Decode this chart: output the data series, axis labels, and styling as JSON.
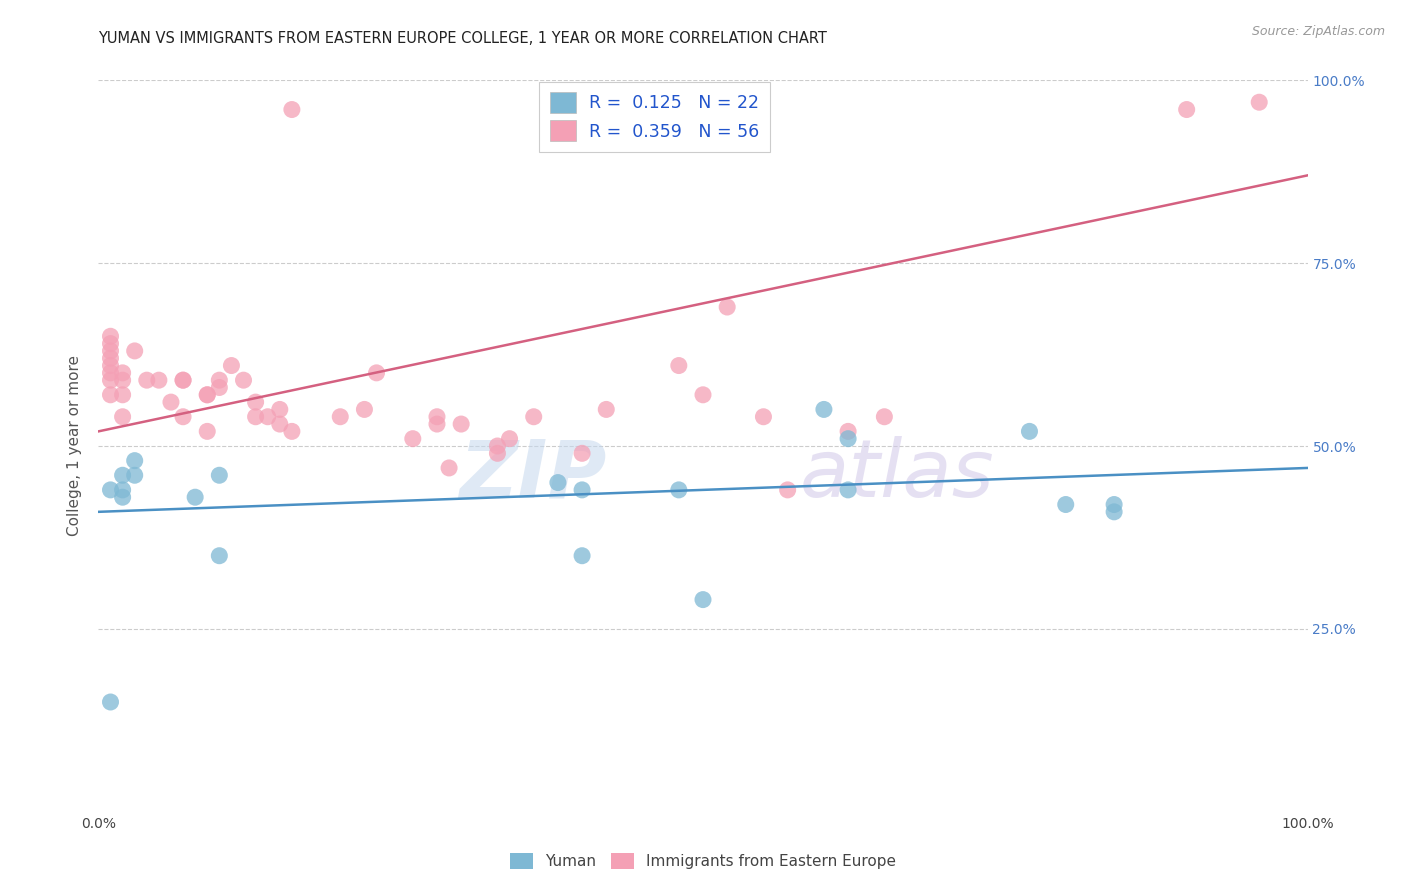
{
  "title": "YUMAN VS IMMIGRANTS FROM EASTERN EUROPE COLLEGE, 1 YEAR OR MORE CORRELATION CHART",
  "source": "Source: ZipAtlas.com",
  "ylabel": "College, 1 year or more",
  "legend_series1": "Yuman",
  "legend_series2": "Immigrants from Eastern Europe",
  "watermark_zip": "ZIP",
  "watermark_atlas": "atlas",
  "blue_color": "#7eb8d4",
  "pink_color": "#f4a0b5",
  "blue_line_color": "#4a90c4",
  "pink_line_color": "#d46080",
  "blue_scatter_x": [
    0.01,
    0.01,
    0.02,
    0.02,
    0.02,
    0.03,
    0.03,
    0.08,
    0.1,
    0.1,
    0.38,
    0.4,
    0.4,
    0.48,
    0.5,
    0.6,
    0.62,
    0.77,
    0.8,
    0.84,
    0.62,
    0.84
  ],
  "blue_scatter_y": [
    0.15,
    0.44,
    0.43,
    0.44,
    0.46,
    0.46,
    0.48,
    0.43,
    0.46,
    0.35,
    0.45,
    0.44,
    0.35,
    0.44,
    0.29,
    0.55,
    0.44,
    0.52,
    0.42,
    0.41,
    0.51,
    0.42
  ],
  "pink_scatter_x": [
    0.01,
    0.01,
    0.01,
    0.01,
    0.01,
    0.01,
    0.01,
    0.01,
    0.02,
    0.02,
    0.02,
    0.02,
    0.03,
    0.04,
    0.05,
    0.06,
    0.07,
    0.07,
    0.07,
    0.09,
    0.09,
    0.09,
    0.1,
    0.1,
    0.11,
    0.12,
    0.13,
    0.13,
    0.14,
    0.15,
    0.15,
    0.16,
    0.2,
    0.22,
    0.23,
    0.26,
    0.28,
    0.28,
    0.29,
    0.3,
    0.33,
    0.33,
    0.34,
    0.36,
    0.4,
    0.42,
    0.48,
    0.5,
    0.52,
    0.55,
    0.57,
    0.62,
    0.65,
    0.16,
    0.9,
    0.96
  ],
  "pink_scatter_y": [
    0.57,
    0.59,
    0.6,
    0.61,
    0.62,
    0.63,
    0.64,
    0.65,
    0.54,
    0.57,
    0.59,
    0.6,
    0.63,
    0.59,
    0.59,
    0.56,
    0.59,
    0.59,
    0.54,
    0.57,
    0.57,
    0.52,
    0.58,
    0.59,
    0.61,
    0.59,
    0.56,
    0.54,
    0.54,
    0.55,
    0.53,
    0.52,
    0.54,
    0.55,
    0.6,
    0.51,
    0.53,
    0.54,
    0.47,
    0.53,
    0.49,
    0.5,
    0.51,
    0.54,
    0.49,
    0.55,
    0.61,
    0.57,
    0.69,
    0.54,
    0.44,
    0.52,
    0.54,
    0.96,
    0.96,
    0.97
  ],
  "blue_line_x0": 0.0,
  "blue_line_x1": 1.0,
  "blue_line_y0": 0.41,
  "blue_line_y1": 0.47,
  "pink_line_x0": 0.0,
  "pink_line_x1": 1.0,
  "pink_line_y0": 0.52,
  "pink_line_y1": 0.87,
  "xlim": [
    0.0,
    1.0
  ],
  "ylim": [
    0.0,
    1.0
  ],
  "background_color": "#ffffff",
  "grid_color": "#cccccc"
}
